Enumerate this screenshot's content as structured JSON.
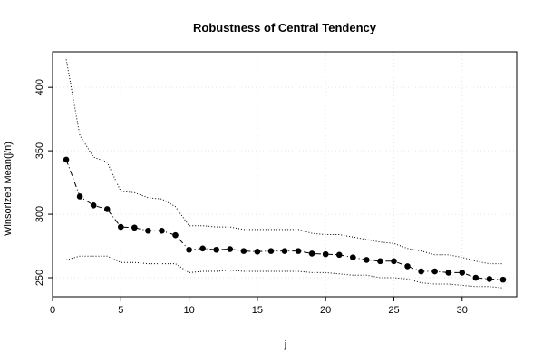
{
  "chart_data": {
    "type": "line",
    "title": "Robustness of Central Tendency",
    "xlabel": "j",
    "ylabel": "Winsorized Mean(j/n)",
    "xlim": [
      0,
      34
    ],
    "ylim": [
      235,
      428
    ],
    "x_ticks": [
      0,
      5,
      10,
      15,
      20,
      25,
      30
    ],
    "y_ticks": [
      250,
      300,
      350,
      400
    ],
    "grid": true,
    "legend": "none",
    "x": [
      1,
      2,
      3,
      4,
      5,
      6,
      7,
      8,
      9,
      10,
      11,
      12,
      13,
      14,
      15,
      16,
      17,
      18,
      19,
      20,
      21,
      22,
      23,
      24,
      25,
      26,
      27,
      28,
      29,
      30,
      31,
      32,
      33
    ],
    "series": [
      {
        "role": "mean",
        "style": "dash-dot with filled circle markers",
        "values": [
          343,
          314,
          307,
          304,
          290,
          289.5,
          287,
          287,
          283.5,
          272,
          273,
          272,
          272.5,
          271,
          270.5,
          271,
          271,
          271,
          269,
          268.5,
          268,
          266,
          264,
          263,
          263,
          259,
          255,
          255,
          254,
          254,
          250,
          249,
          248.5
        ]
      },
      {
        "role": "upper",
        "style": "dotted",
        "values": [
          422,
          362,
          345,
          341,
          318,
          317,
          313,
          312,
          306,
          291,
          291,
          290,
          290,
          288,
          288,
          288,
          288,
          288,
          285,
          284,
          284,
          282,
          280,
          278,
          277,
          273,
          271,
          268,
          268,
          266,
          263,
          261,
          261
        ]
      },
      {
        "role": "lower",
        "style": "dotted",
        "values": [
          264,
          267,
          267,
          267,
          262,
          262,
          261,
          261,
          261,
          254,
          255,
          255,
          256,
          255,
          255,
          255,
          255,
          255,
          254,
          254,
          253,
          252,
          252,
          250,
          250,
          249,
          246,
          245,
          245,
          244,
          243,
          243,
          242
        ]
      }
    ]
  }
}
